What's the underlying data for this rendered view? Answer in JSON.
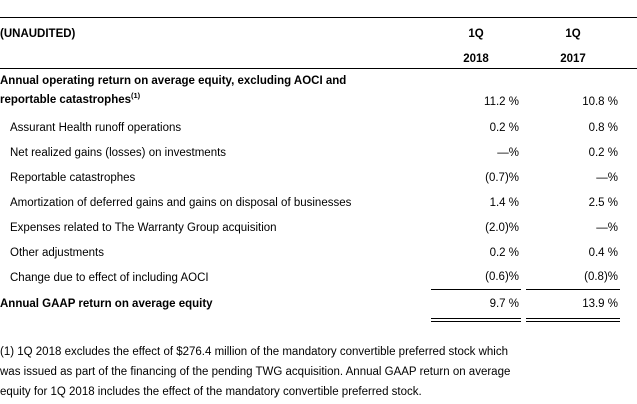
{
  "header": {
    "unaudited_label": "(UNAUDITED)",
    "columns": [
      {
        "quarter": "1Q",
        "year": "2018"
      },
      {
        "quarter": "1Q",
        "year": "2017"
      }
    ]
  },
  "table": {
    "rows": [
      {
        "label_line1": "Annual operating return on average equity, excluding AOCI and",
        "label_line2": "reportable catastrophes",
        "footnote_ref": "(1)",
        "v2018": "11.2 %",
        "v2017": "10.8 %"
      },
      {
        "label": "Assurant Health runoff operations",
        "v2018": "0.2 %",
        "v2017": "0.8 %"
      },
      {
        "label": "Net realized gains (losses) on investments",
        "v2018": "—%",
        "v2017": "0.2 %"
      },
      {
        "label": "Reportable catastrophes",
        "v2018": "(0.7)%",
        "v2017": "—%"
      },
      {
        "label": "Amortization of deferred gains and gains on disposal of businesses",
        "v2018": "1.4 %",
        "v2017": "2.5 %"
      },
      {
        "label": "Expenses related to The Warranty Group acquisition",
        "v2018": "(2.0)%",
        "v2017": "—%"
      },
      {
        "label": "Other adjustments",
        "v2018": "0.2 %",
        "v2017": "0.4 %"
      },
      {
        "label": "Change due to effect of including AOCI",
        "v2018": "(0.6)%",
        "v2017": "(0.8)%"
      },
      {
        "label": "Annual GAAP return on average equity",
        "v2018": "9.7 %",
        "v2017": "13.9 %"
      }
    ]
  },
  "footnote": {
    "lines": [
      "(1) 1Q 2018 excludes the effect of $276.4 million of the mandatory convertible preferred stock which",
      "was issued as part of the financing of the pending TWG acquisition. Annual GAAP return on average",
      "equity for 1Q 2018 includes the effect of the mandatory convertible preferred stock."
    ]
  }
}
